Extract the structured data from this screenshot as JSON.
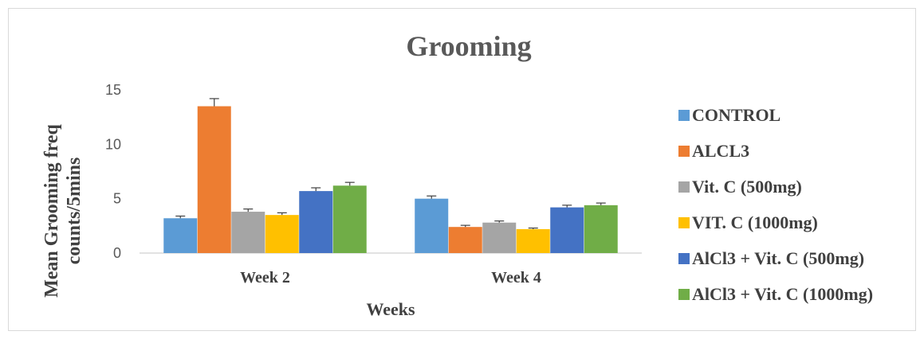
{
  "chart_data": {
    "type": "bar",
    "title": "Grooming",
    "xlabel": "Weeks",
    "ylabel_lines": [
      "Mean Grooming freq",
      "counts/5mins"
    ],
    "categories": [
      "Week 2",
      "Week 4"
    ],
    "ylim": [
      0,
      15
    ],
    "yticks": [
      0,
      5,
      10,
      15
    ],
    "grid": false,
    "legend_position": "right",
    "error_bars": true,
    "series": [
      {
        "name": "CONTROL",
        "color": "#5B9BD5",
        "values": [
          3.2,
          5.0
        ],
        "errors": [
          0.2,
          0.25
        ]
      },
      {
        "name": "ALCL3",
        "color": "#ED7D31",
        "values": [
          13.5,
          2.4
        ],
        "errors": [
          0.7,
          0.15
        ]
      },
      {
        "name": "Vit. C (500mg)",
        "color": "#A5A5A5",
        "values": [
          3.8,
          2.8
        ],
        "errors": [
          0.25,
          0.15
        ]
      },
      {
        "name": "VIT. C (1000mg)",
        "color": "#FFC000",
        "values": [
          3.5,
          2.2
        ],
        "errors": [
          0.2,
          0.1
        ]
      },
      {
        "name": "AlCl3 + Vit. C (500mg)",
        "color": "#4472C4",
        "values": [
          5.7,
          4.2
        ],
        "errors": [
          0.3,
          0.2
        ]
      },
      {
        "name": "AlCl3 + Vit. C (1000mg)",
        "color": "#70AD47",
        "values": [
          6.2,
          4.4
        ],
        "errors": [
          0.3,
          0.2
        ]
      }
    ]
  }
}
